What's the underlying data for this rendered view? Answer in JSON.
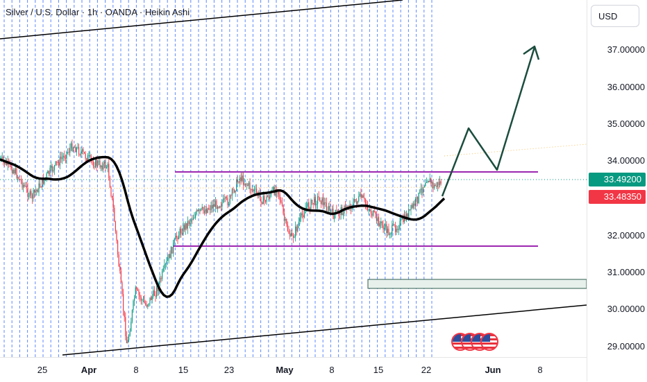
{
  "title": "Silver / U.S. Dollar · 1h · OANDA · Heikin Ashi",
  "currency": "USD",
  "price_axis": {
    "labels": [
      "37.00000",
      "36.00000",
      "35.00000",
      "34.00000",
      "32.00000",
      "31.00000",
      "30.00000",
      "29.00000"
    ],
    "current_price": "33.49200",
    "secondary_price": "33.48350",
    "colors": {
      "current": "#089981",
      "secondary": "#f23645"
    }
  },
  "time_axis": {
    "labels": [
      {
        "text": "25",
        "bold": false
      },
      {
        "text": "Apr",
        "bold": true
      },
      {
        "text": "8",
        "bold": false
      },
      {
        "text": "15",
        "bold": false
      },
      {
        "text": "23",
        "bold": false
      },
      {
        "text": "May",
        "bold": true
      },
      {
        "text": "8",
        "bold": false
      },
      {
        "text": "15",
        "bold": false
      },
      {
        "text": "22",
        "bold": false
      },
      {
        "text": "Jun",
        "bold": true
      },
      {
        "text": "8",
        "bold": false
      }
    ]
  },
  "drawings": {
    "resistance_line_color": "#9c27b0",
    "support_line_color": "#9c27b0",
    "ma_fast_color": "#f5a623",
    "ma_slow_color": "#000000",
    "grid_line_color": "#2962ff",
    "zone_color": "#2e5e4e"
  },
  "events": {
    "icon": "us-flag-icon",
    "count": 4
  }
}
